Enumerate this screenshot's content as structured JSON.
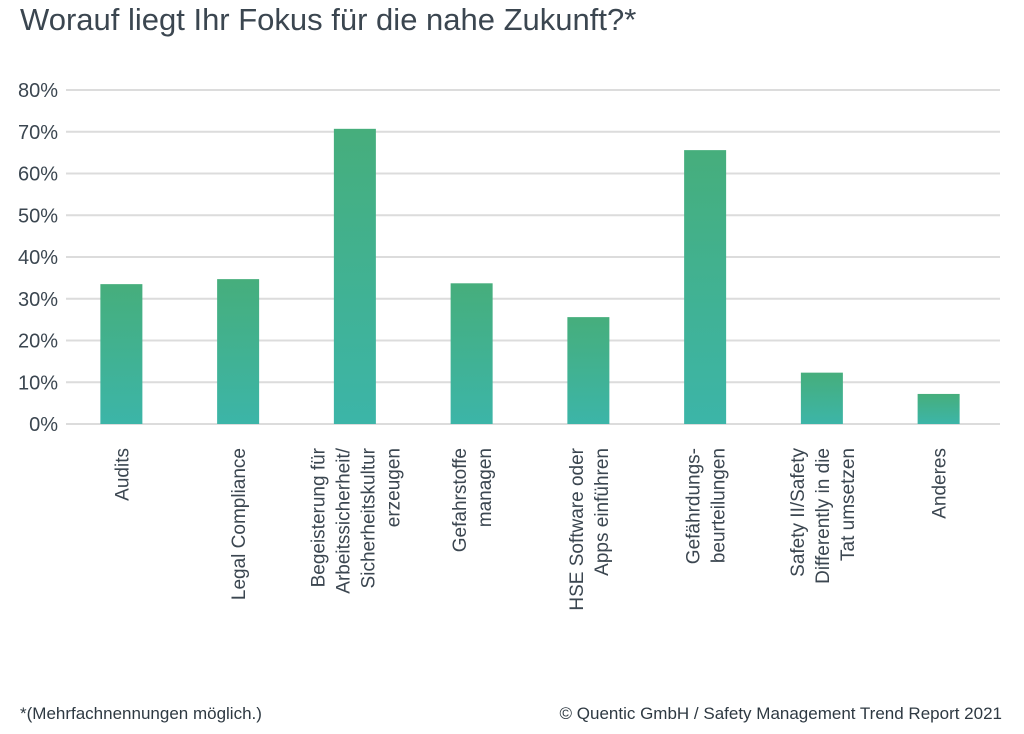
{
  "header": {
    "title": "Worauf liegt Ihr Fokus für die nahe Zukunft?*"
  },
  "footer": {
    "note": "*(Mehrfachnennungen möglich.)",
    "copyright": "© Quentic GmbH / Safety Management Trend Report 2021"
  },
  "chart_data": {
    "type": "bar",
    "title": "Worauf liegt Ihr Fokus für die nahe Zukunft?*",
    "xlabel": "",
    "ylabel": "",
    "ylim": [
      0,
      80
    ],
    "yticks": [
      "0%",
      "10%",
      "20%",
      "30%",
      "40%",
      "50%",
      "60%",
      "70%",
      "80%"
    ],
    "grid": true,
    "legend": "none",
    "categories": [
      [
        "Audits"
      ],
      [
        "Legal Compliance"
      ],
      [
        "Begeisterung für",
        "Arbeitssicherheit/",
        "Sicherheitskultur",
        "erzeugen"
      ],
      [
        "Gefahrstoffe",
        "managen"
      ],
      [
        "HSE Software oder",
        "Apps einführen"
      ],
      [
        "Gefährdungs-",
        "beurteilungen"
      ],
      [
        "Safety II/Safety",
        "Differently in die",
        "Tat umsetzen"
      ],
      [
        "Anderes"
      ]
    ],
    "values": [
      33.5,
      34.7,
      70.7,
      33.7,
      25.6,
      65.6,
      12.3,
      7.2
    ],
    "colors": {
      "bar_top": "#46ae7c",
      "bar_bottom": "#3cb5a8",
      "grid": "#dcdcdc",
      "text": "#3b4650"
    }
  }
}
